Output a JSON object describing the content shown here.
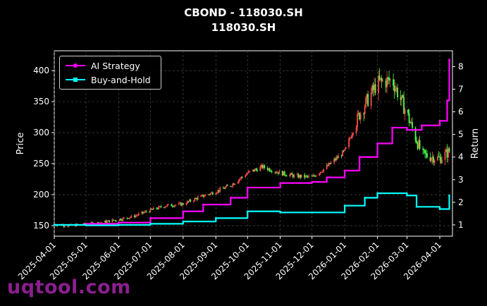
{
  "title": "CBOND - 118030.SH",
  "subtitle": "118030.SH",
  "watermark": "uqtool.com",
  "colors": {
    "background": "#000000",
    "up": "#ff4d4d",
    "down": "#4dff4d",
    "ai_strategy": "#ff00ff",
    "buy_hold": "#00ffff",
    "grid": "#555555"
  },
  "chart_data": {
    "type": "line",
    "title": "CBOND - 118030.SH",
    "subtitle": "118030.SH",
    "ylabel": "Price",
    "y2label": "Return",
    "ylim": [
      133,
      432
    ],
    "y2lim": [
      0.5,
      8.7
    ],
    "yticks": [
      150,
      200,
      250,
      300,
      350,
      400
    ],
    "y2ticks": [
      1,
      2,
      3,
      4,
      5,
      6,
      7,
      8
    ],
    "xlim": [
      "2025-04-01",
      "2026-04-13"
    ],
    "xticks": [
      "2025-04-01",
      "2025-05-01",
      "2025-06-01",
      "2025-07-01",
      "2025-08-01",
      "2025-09-01",
      "2025-10-01",
      "2025-11-01",
      "2025-12-01",
      "2026-01-01",
      "2026-02-01",
      "2026-03-01",
      "2026-04-01"
    ],
    "grid": true,
    "legend_position": "top-left",
    "price_candles_close": [
      [
        "2025-04-01",
        152
      ],
      [
        "2025-04-15",
        150
      ],
      [
        "2025-05-01",
        152
      ],
      [
        "2025-05-15",
        155
      ],
      [
        "2025-06-01",
        160
      ],
      [
        "2025-06-15",
        165
      ],
      [
        "2025-07-01",
        175
      ],
      [
        "2025-07-15",
        182
      ],
      [
        "2025-08-01",
        185
      ],
      [
        "2025-08-15",
        195
      ],
      [
        "2025-09-01",
        205
      ],
      [
        "2025-09-15",
        215
      ],
      [
        "2025-10-01",
        235
      ],
      [
        "2025-10-15",
        245
      ],
      [
        "2025-11-01",
        235
      ],
      [
        "2025-11-15",
        230
      ],
      [
        "2025-12-01",
        228
      ],
      [
        "2025-12-15",
        245
      ],
      [
        "2026-01-01",
        270
      ],
      [
        "2026-01-15",
        330
      ],
      [
        "2026-02-01",
        380
      ],
      [
        "2026-02-15",
        385
      ],
      [
        "2026-03-01",
        330
      ],
      [
        "2026-03-15",
        265
      ],
      [
        "2026-04-01",
        258
      ],
      [
        "2026-04-10",
        270
      ]
    ],
    "series": [
      {
        "name": "AI Strategy",
        "axis": "right",
        "points": [
          [
            "2025-04-01",
            1.0
          ],
          [
            "2025-05-01",
            1.05
          ],
          [
            "2025-06-01",
            1.1
          ],
          [
            "2025-07-01",
            1.3
          ],
          [
            "2025-08-01",
            1.6
          ],
          [
            "2025-08-20",
            1.9
          ],
          [
            "2025-09-15",
            2.2
          ],
          [
            "2025-10-01",
            2.65
          ],
          [
            "2025-11-01",
            2.85
          ],
          [
            "2025-12-01",
            2.9
          ],
          [
            "2025-12-15",
            3.1
          ],
          [
            "2026-01-01",
            3.4
          ],
          [
            "2026-01-15",
            4.0
          ],
          [
            "2026-02-01",
            4.6
          ],
          [
            "2026-02-15",
            5.3
          ],
          [
            "2026-03-01",
            5.2
          ],
          [
            "2026-03-15",
            5.4
          ],
          [
            "2026-04-01",
            5.6
          ],
          [
            "2026-04-08",
            6.5
          ],
          [
            "2026-04-10",
            8.3
          ]
        ]
      },
      {
        "name": "Buy-and-Hold",
        "axis": "right",
        "points": [
          [
            "2025-04-01",
            1.0
          ],
          [
            "2025-05-01",
            0.98
          ],
          [
            "2025-06-01",
            1.0
          ],
          [
            "2025-07-01",
            1.05
          ],
          [
            "2025-08-01",
            1.15
          ],
          [
            "2025-09-01",
            1.3
          ],
          [
            "2025-10-01",
            1.6
          ],
          [
            "2025-11-01",
            1.55
          ],
          [
            "2025-12-01",
            1.55
          ],
          [
            "2026-01-01",
            1.85
          ],
          [
            "2026-01-20",
            2.2
          ],
          [
            "2026-02-01",
            2.4
          ],
          [
            "2026-03-01",
            2.3
          ],
          [
            "2026-03-10",
            1.8
          ],
          [
            "2026-04-01",
            1.7
          ],
          [
            "2026-04-10",
            2.3
          ]
        ]
      }
    ]
  }
}
